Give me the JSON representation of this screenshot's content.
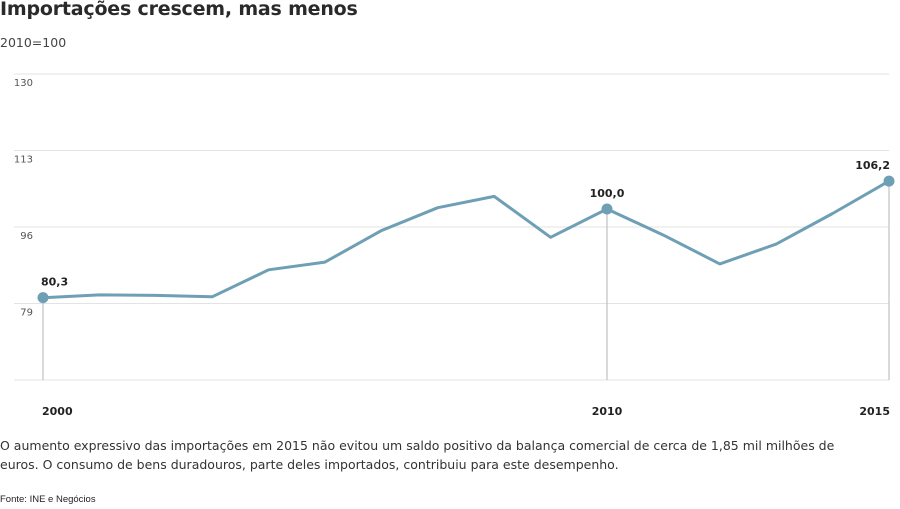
{
  "header": {
    "title": "Importações crescem, mas menos",
    "subtitle": "2010=100"
  },
  "chart_data": {
    "type": "line",
    "title": "Importações crescem, mas menos",
    "subtitle": "2010=100",
    "xlabel": "",
    "ylabel": "",
    "x": [
      2000,
      2001,
      2002,
      2003,
      2004,
      2005,
      2006,
      2007,
      2008,
      2009,
      2010,
      2011,
      2012,
      2013,
      2014,
      2015
    ],
    "series": [
      {
        "values": [
          80.3,
          80.9,
          80.8,
          80.5,
          86.5,
          88.2,
          95.2,
          100.3,
          102.8,
          93.7,
          100.0,
          94.2,
          87.8,
          92.2,
          99.0,
          106.2
        ]
      }
    ],
    "ylim": [
      62,
      130
    ],
    "yticks": [
      130,
      113,
      96,
      79
    ],
    "xticks": [
      "2000",
      "2010",
      "2015"
    ],
    "annotations": [
      {
        "x": 2000,
        "label": "80,3"
      },
      {
        "x": 2010,
        "label": "100,0"
      },
      {
        "x": 2015,
        "label": "106,2"
      }
    ],
    "grid": true,
    "line_color": "#6f9fb5"
  },
  "footer": {
    "caption": "O aumento expressivo das importações em 2015 não evitou um saldo positivo da balança comercial de cerca de 1,85 mil milhões de euros. O consumo de bens duradouros, parte deles importados, contribuiu para este desempenho.",
    "source": "Fonte: INE e Negócios"
  }
}
